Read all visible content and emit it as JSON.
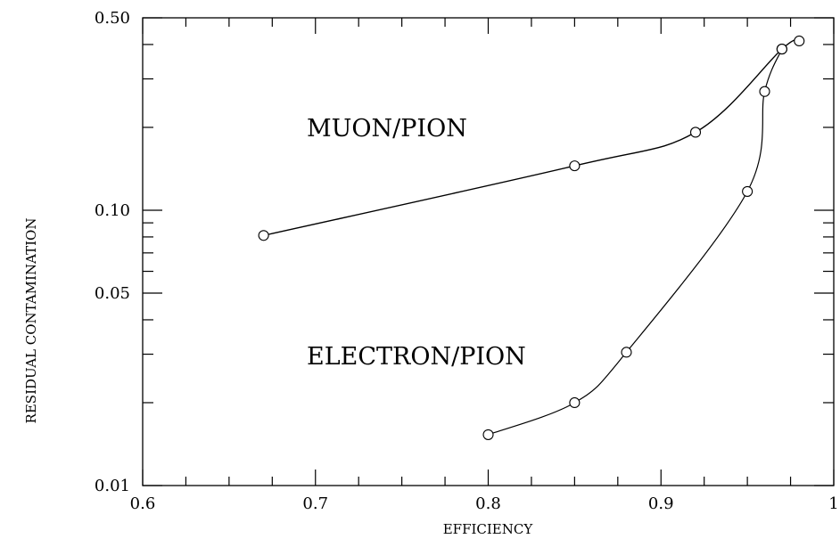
{
  "chart_data": {
    "type": "line",
    "title": "",
    "xlabel": "EFFICIENCY",
    "ylabel": "RESIDUAL CONTAMINATION",
    "xlim": [
      0.6,
      1.0
    ],
    "ylim": [
      0.01,
      0.5
    ],
    "y_scale": "log",
    "grid": false,
    "x_ticks": [
      {
        "value": 0.6,
        "label": "0.6"
      },
      {
        "value": 0.7,
        "label": "0.7"
      },
      {
        "value": 0.8,
        "label": "0.8"
      },
      {
        "value": 0.9,
        "label": "0.9"
      },
      {
        "value": 1.0,
        "label": "1"
      }
    ],
    "y_ticks": [
      {
        "value": 0.01,
        "label": "0.01"
      },
      {
        "value": 0.05,
        "label": "0.05"
      },
      {
        "value": 0.1,
        "label": "0.10"
      },
      {
        "value": 0.5,
        "label": "0.50"
      }
    ],
    "series": [
      {
        "name": "MUON/PION",
        "x": [
          0.67,
          0.85,
          0.92,
          0.97,
          0.98
        ],
        "y": [
          0.081,
          0.145,
          0.192,
          0.385,
          0.412
        ]
      },
      {
        "name": "ELECTRON/PION",
        "x": [
          0.8,
          0.85,
          0.88,
          0.95,
          0.96,
          0.97
        ],
        "y": [
          0.0153,
          0.02,
          0.0305,
          0.117,
          0.27,
          0.385
        ]
      }
    ],
    "annotations": [
      "MUON/PION",
      "ELECTRON/PION"
    ]
  }
}
